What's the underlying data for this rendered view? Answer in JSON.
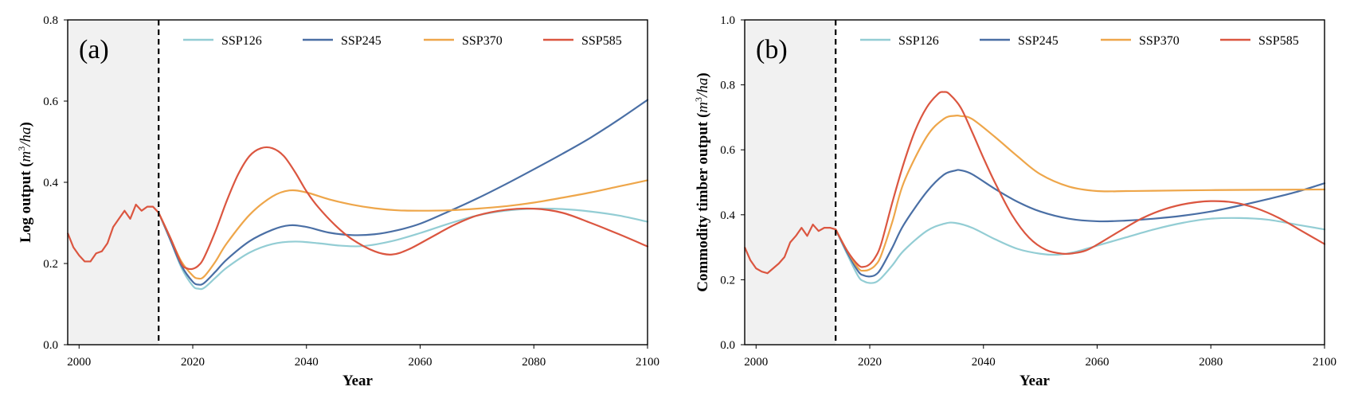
{
  "colors": {
    "SSP126": "#93cdd4",
    "SSP245": "#4a6fa5",
    "SSP370": "#eea64a",
    "SSP585": "#db5640",
    "historical_shading": "#f1f1f1"
  },
  "chart_data": [
    {
      "type": "line",
      "panel_label": "(a)",
      "xlabel": "Year",
      "ylabel_main": "Log output (",
      "ylabel_unit_base": "m",
      "ylabel_unit_exp": "3",
      "ylabel_unit_rest": "/ha",
      "ylabel_close": ")",
      "xlim": [
        1998,
        2100
      ],
      "ylim": [
        0,
        0.8
      ],
      "xticks": [
        2000,
        2020,
        2040,
        2060,
        2080,
        2100
      ],
      "yticks": [
        0,
        0.2,
        0.4,
        0.6,
        0.8
      ],
      "ytick_labels": [
        "0.0",
        "0.2",
        "0.4",
        "0.6",
        "0.8"
      ],
      "historical_range": [
        1998,
        2014
      ],
      "divider_x": 2014,
      "legend": [
        "SSP126",
        "SSP245",
        "SSP370",
        "SSP585"
      ],
      "historical": {
        "x": [
          1998,
          1999,
          2000,
          2001,
          2002,
          2003,
          2004,
          2005,
          2006,
          2007,
          2008,
          2009,
          2010,
          2011,
          2012,
          2013,
          2014
        ],
        "y": [
          0.275,
          0.24,
          0.22,
          0.205,
          0.205,
          0.225,
          0.23,
          0.25,
          0.29,
          0.31,
          0.33,
          0.31,
          0.345,
          0.33,
          0.34,
          0.34,
          0.325
        ]
      },
      "series": [
        {
          "name": "SSP126",
          "x": [
            2014,
            2016,
            2018,
            2020,
            2021,
            2022,
            2024,
            2026,
            2030,
            2034,
            2038,
            2042,
            2046,
            2050,
            2055,
            2060,
            2065,
            2070,
            2075,
            2080,
            2085,
            2090,
            2095,
            2100
          ],
          "y": [
            0.325,
            0.26,
            0.19,
            0.145,
            0.138,
            0.14,
            0.165,
            0.19,
            0.227,
            0.248,
            0.254,
            0.25,
            0.244,
            0.243,
            0.255,
            0.275,
            0.298,
            0.318,
            0.33,
            0.335,
            0.334,
            0.328,
            0.318,
            0.303
          ]
        },
        {
          "name": "SSP245",
          "x": [
            2014,
            2016,
            2018,
            2020,
            2021,
            2022,
            2024,
            2026,
            2030,
            2034,
            2037,
            2040,
            2044,
            2048,
            2052,
            2056,
            2060,
            2065,
            2070,
            2075,
            2080,
            2085,
            2090,
            2095,
            2100
          ],
          "y": [
            0.325,
            0.26,
            0.195,
            0.155,
            0.148,
            0.152,
            0.18,
            0.21,
            0.255,
            0.283,
            0.294,
            0.29,
            0.276,
            0.27,
            0.272,
            0.282,
            0.298,
            0.328,
            0.36,
            0.395,
            0.432,
            0.47,
            0.51,
            0.555,
            0.603
          ]
        },
        {
          "name": "SSP370",
          "x": [
            2014,
            2016,
            2018,
            2020,
            2021,
            2022,
            2024,
            2026,
            2030,
            2034,
            2037,
            2040,
            2044,
            2048,
            2052,
            2056,
            2060,
            2065,
            2070,
            2075,
            2080,
            2085,
            2090,
            2095,
            2100
          ],
          "y": [
            0.325,
            0.265,
            0.205,
            0.17,
            0.163,
            0.168,
            0.205,
            0.25,
            0.32,
            0.365,
            0.38,
            0.375,
            0.358,
            0.345,
            0.336,
            0.331,
            0.33,
            0.331,
            0.335,
            0.341,
            0.35,
            0.362,
            0.375,
            0.39,
            0.405
          ]
        },
        {
          "name": "SSP585",
          "x": [
            2014,
            2016,
            2018,
            2019,
            2020,
            2021,
            2022,
            2024,
            2026,
            2028,
            2030,
            2032,
            2034,
            2036,
            2038,
            2040,
            2042,
            2045,
            2048,
            2052,
            2055,
            2058,
            2062,
            2066,
            2070,
            2075,
            2080,
            2085,
            2090,
            2095,
            2100
          ],
          "y": [
            0.325,
            0.265,
            0.2,
            0.188,
            0.187,
            0.195,
            0.215,
            0.28,
            0.355,
            0.42,
            0.465,
            0.484,
            0.484,
            0.465,
            0.425,
            0.378,
            0.34,
            0.295,
            0.26,
            0.23,
            0.222,
            0.235,
            0.265,
            0.295,
            0.318,
            0.332,
            0.335,
            0.325,
            0.3,
            0.272,
            0.242
          ]
        }
      ]
    },
    {
      "type": "line",
      "panel_label": "(b)",
      "xlabel": "Year",
      "ylabel_main": "Commodity timber output (",
      "ylabel_unit_base": "m",
      "ylabel_unit_exp": "3",
      "ylabel_unit_rest": "/ha",
      "ylabel_close": ")",
      "xlim": [
        1998,
        2100
      ],
      "ylim": [
        0,
        1.0
      ],
      "xticks": [
        2000,
        2020,
        2040,
        2060,
        2080,
        2100
      ],
      "yticks": [
        0,
        0.2,
        0.4,
        0.6,
        0.8,
        1.0
      ],
      "ytick_labels": [
        "0.0",
        "0.2",
        "0.4",
        "0.6",
        "0.8",
        "1.0"
      ],
      "historical_range": [
        1998,
        2014
      ],
      "divider_x": 2014,
      "legend": [
        "SSP126",
        "SSP245",
        "SSP370",
        "SSP585"
      ],
      "historical": {
        "x": [
          1998,
          1999,
          2000,
          2001,
          2002,
          2003,
          2004,
          2005,
          2006,
          2007,
          2008,
          2009,
          2010,
          2011,
          2012,
          2013,
          2014
        ],
        "y": [
          0.3,
          0.26,
          0.235,
          0.225,
          0.22,
          0.235,
          0.25,
          0.27,
          0.315,
          0.335,
          0.36,
          0.335,
          0.37,
          0.35,
          0.36,
          0.36,
          0.355
        ]
      },
      "series": [
        {
          "name": "SSP126",
          "x": [
            2014,
            2016,
            2018,
            2019,
            2020,
            2021,
            2022,
            2024,
            2026,
            2030,
            2033,
            2035,
            2038,
            2042,
            2046,
            2050,
            2053,
            2056,
            2060,
            2065,
            2070,
            2075,
            2080,
            2085,
            2090,
            2095,
            2100
          ],
          "y": [
            0.355,
            0.28,
            0.21,
            0.195,
            0.19,
            0.192,
            0.205,
            0.245,
            0.29,
            0.35,
            0.372,
            0.375,
            0.36,
            0.325,
            0.295,
            0.28,
            0.277,
            0.285,
            0.305,
            0.33,
            0.355,
            0.375,
            0.388,
            0.39,
            0.385,
            0.37,
            0.355
          ]
        },
        {
          "name": "SSP245",
          "x": [
            2014,
            2016,
            2018,
            2019,
            2020,
            2021,
            2022,
            2024,
            2026,
            2030,
            2033,
            2035,
            2036,
            2038,
            2042,
            2046,
            2050,
            2055,
            2060,
            2065,
            2070,
            2075,
            2080,
            2085,
            2090,
            2095,
            2100
          ],
          "y": [
            0.355,
            0.285,
            0.225,
            0.213,
            0.21,
            0.215,
            0.235,
            0.3,
            0.37,
            0.47,
            0.523,
            0.536,
            0.537,
            0.525,
            0.48,
            0.44,
            0.41,
            0.388,
            0.38,
            0.382,
            0.388,
            0.397,
            0.41,
            0.428,
            0.448,
            0.47,
            0.497
          ]
        },
        {
          "name": "SSP370",
          "x": [
            2014,
            2016,
            2018,
            2019,
            2020,
            2021,
            2022,
            2024,
            2026,
            2030,
            2033,
            2035,
            2036,
            2038,
            2042,
            2046,
            2050,
            2055,
            2060,
            2065,
            2070,
            2080,
            2090,
            2100
          ],
          "y": [
            0.355,
            0.29,
            0.235,
            0.228,
            0.232,
            0.245,
            0.275,
            0.38,
            0.5,
            0.64,
            0.695,
            0.705,
            0.704,
            0.695,
            0.64,
            0.58,
            0.525,
            0.487,
            0.473,
            0.473,
            0.474,
            0.476,
            0.477,
            0.478
          ]
        },
        {
          "name": "SSP585",
          "x": [
            2014,
            2016,
            2018,
            2019,
            2020,
            2021,
            2022,
            2024,
            2026,
            2028,
            2030,
            2032,
            2033,
            2034,
            2036,
            2038,
            2040,
            2042,
            2045,
            2048,
            2051,
            2054,
            2056,
            2058,
            2060,
            2064,
            2068,
            2072,
            2076,
            2080,
            2084,
            2088,
            2092,
            2096,
            2100
          ],
          "y": [
            0.355,
            0.29,
            0.245,
            0.24,
            0.248,
            0.27,
            0.31,
            0.44,
            0.56,
            0.66,
            0.73,
            0.772,
            0.778,
            0.772,
            0.73,
            0.655,
            0.575,
            0.5,
            0.4,
            0.33,
            0.292,
            0.28,
            0.282,
            0.29,
            0.308,
            0.35,
            0.39,
            0.418,
            0.435,
            0.442,
            0.438,
            0.42,
            0.39,
            0.35,
            0.31
          ]
        }
      ]
    }
  ]
}
